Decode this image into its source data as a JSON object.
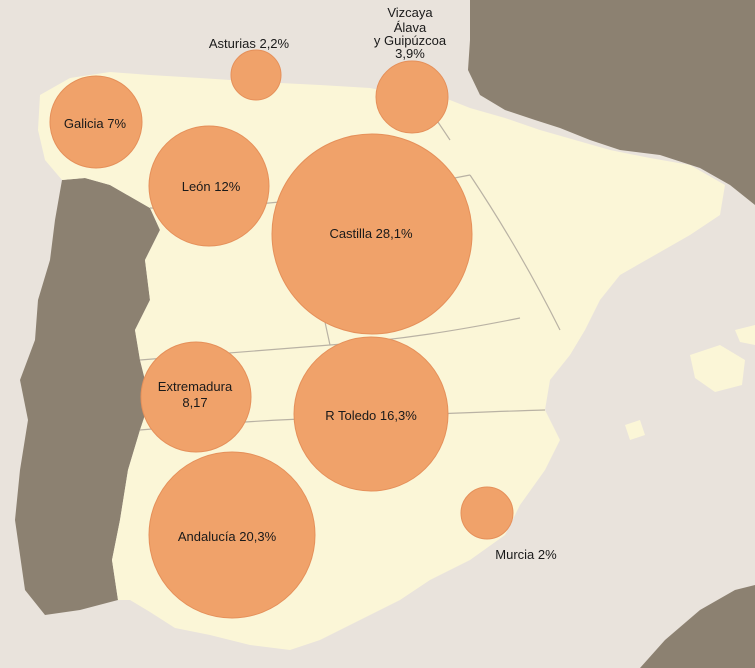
{
  "colors": {
    "sea": "#e9e3dc",
    "spain": "#fbf6d7",
    "foreign": "#8c8171",
    "border": "#b9b2a4",
    "bubble": "#f0a26a",
    "bubble_stroke": "#e5905a",
    "text": "#1a1a1a"
  },
  "regions": [
    {
      "id": "asturias",
      "name": "Asturias",
      "value_label": "2,2%",
      "share": 2.2
    },
    {
      "id": "vizcaya",
      "name_lines": [
        "Vizcaya",
        "Álava",
        "y Guipúzcoa"
      ],
      "value_label": "3,9%",
      "share": 3.9
    },
    {
      "id": "galicia",
      "name": "Galicia",
      "value_label": "7%",
      "share": 7.0
    },
    {
      "id": "leon",
      "name": "León",
      "value_label": "12%",
      "share": 12.0
    },
    {
      "id": "castilla",
      "name": "Castilla",
      "value_label": "28,1%",
      "share": 28.1
    },
    {
      "id": "extremadura",
      "name": "Extremadura",
      "value_label": "8,17",
      "share": 8.17
    },
    {
      "id": "toledo",
      "name": "R Toledo",
      "value_label": "16,3%",
      "share": 16.3
    },
    {
      "id": "andalucia",
      "name": "Andalucía",
      "value_label": "20,3%",
      "share": 20.3
    },
    {
      "id": "murcia",
      "name": "Murcia",
      "value_label": "2%",
      "share": 2.0
    }
  ],
  "labels": {
    "asturias": "Asturias 2,2%",
    "vizcaya_1": "Vizcaya",
    "vizcaya_2": "Álava",
    "vizcaya_3": "y Guipúzcoa",
    "vizcaya_4": "3,9%",
    "galicia": "Galicia 7%",
    "leon": "León 12%",
    "castilla": "Castilla 28,1%",
    "extremadura_1": "Extremadura",
    "extremadura_2": "8,17",
    "toledo": "R Toledo 16,3%",
    "andalucia": "Andalucía 20,3%",
    "murcia": "Murcia 2%"
  }
}
